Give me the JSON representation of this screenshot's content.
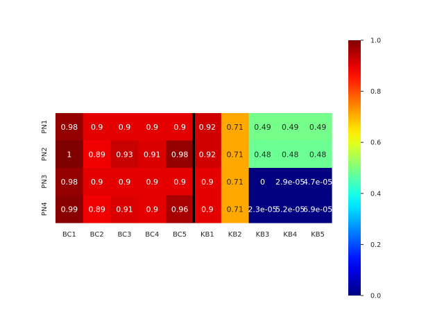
{
  "chart_data": {
    "type": "heatmap",
    "title": "",
    "xlabel": "",
    "ylabel": "",
    "columns": [
      "BC1",
      "BC2",
      "BC3",
      "BC4",
      "BC5",
      "KB1",
      "KB2",
      "KB3",
      "KB4",
      "KB5"
    ],
    "rows": [
      "PN1",
      "PN2",
      "PN3",
      "PN4"
    ],
    "values": [
      [
        0.98,
        0.9,
        0.9,
        0.9,
        0.9,
        0.92,
        0.71,
        0.49,
        0.49,
        0.49
      ],
      [
        1.0,
        0.89,
        0.93,
        0.91,
        0.98,
        0.92,
        0.71,
        0.48,
        0.48,
        0.48
      ],
      [
        0.98,
        0.9,
        0.9,
        0.9,
        0.9,
        0.9,
        0.71,
        0.0,
        2.9e-05,
        4.7e-05
      ],
      [
        0.99,
        0.89,
        0.91,
        0.9,
        0.96,
        0.9,
        0.71,
        2.3e-05,
        5.2e-05,
        6.9e-05
      ]
    ],
    "annotations": [
      [
        "0.98",
        "0.9",
        "0.9",
        "0.9",
        "0.9",
        "0.92",
        "0.71",
        "0.49",
        "0.49",
        "0.49"
      ],
      [
        "1",
        "0.89",
        "0.93",
        "0.91",
        "0.98",
        "0.92",
        "0.71",
        "0.48",
        "0.48",
        "0.48"
      ],
      [
        "0.98",
        "0.9",
        "0.9",
        "0.9",
        "0.9",
        "0.9",
        "0.71",
        "0",
        "2.9e-05",
        "4.7e-05"
      ],
      [
        "0.99",
        "0.89",
        "0.91",
        "0.9",
        "0.96",
        "0.9",
        "0.71",
        "2.3e-05",
        "5.2e-05",
        "6.9e-05"
      ]
    ],
    "colormap": "jet",
    "vmin": 0,
    "vmax": 1,
    "colorbar_ticks": [
      "0.0",
      "0.2",
      "0.4",
      "0.6",
      "0.8",
      "1.0"
    ],
    "separator_after_column": "BC5",
    "separator_color": "#000000"
  }
}
